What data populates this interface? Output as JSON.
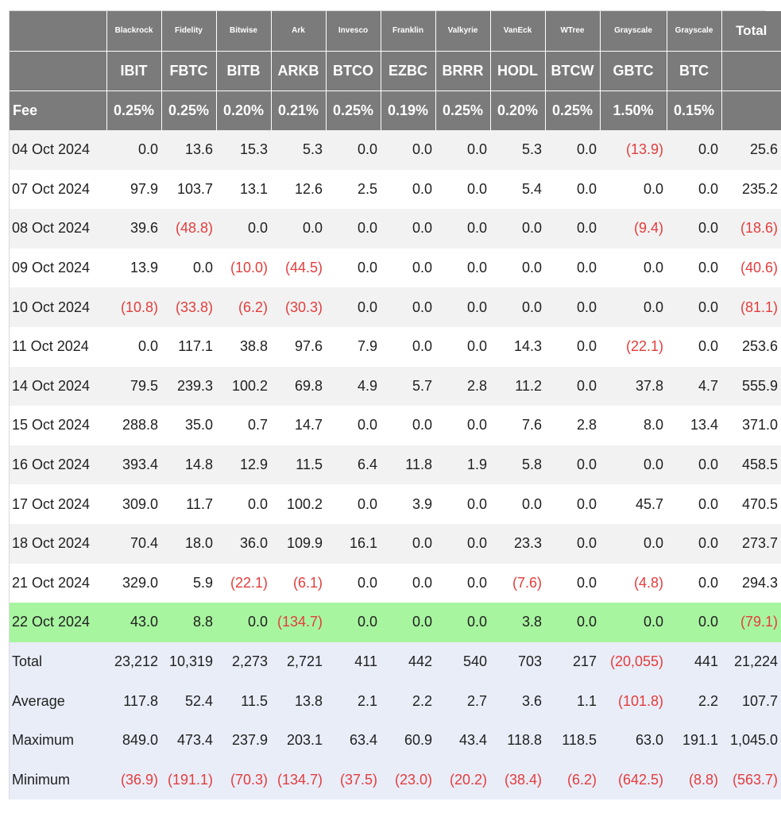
{
  "colors": {
    "header_bg": "#7b7b7b",
    "negative": "#e23d3d",
    "latest_row": "#a8f5a0",
    "summary_bg": "#e9edf8"
  },
  "header": {
    "issuers": [
      "Blackrock",
      "Fidelity",
      "Bitwise",
      "Ark",
      "Invesco",
      "Franklin",
      "Valkyrie",
      "VanEck",
      "WTree",
      "Grayscale",
      "Grayscale"
    ],
    "total_label": "Total",
    "tickers": [
      "IBIT",
      "FBTC",
      "BITB",
      "ARKB",
      "BTCO",
      "EZBC",
      "BRRR",
      "HODL",
      "BTCW",
      "GBTC",
      "BTC"
    ],
    "fee_label": "Fee",
    "fees": [
      "0.25%",
      "0.25%",
      "0.20%",
      "0.21%",
      "0.25%",
      "0.19%",
      "0.25%",
      "0.20%",
      "0.25%",
      "1.50%",
      "0.15%"
    ]
  },
  "rows": [
    {
      "date": "04 Oct 2024",
      "values": [
        "0.0",
        "13.6",
        "15.3",
        "5.3",
        "0.0",
        "0.0",
        "0.0",
        "5.3",
        "0.0",
        "(13.9)",
        "0.0",
        "25.6"
      ]
    },
    {
      "date": "07 Oct 2024",
      "values": [
        "97.9",
        "103.7",
        "13.1",
        "12.6",
        "2.5",
        "0.0",
        "0.0",
        "5.4",
        "0.0",
        "0.0",
        "0.0",
        "235.2"
      ]
    },
    {
      "date": "08 Oct 2024",
      "values": [
        "39.6",
        "(48.8)",
        "0.0",
        "0.0",
        "0.0",
        "0.0",
        "0.0",
        "0.0",
        "0.0",
        "(9.4)",
        "0.0",
        "(18.6)"
      ]
    },
    {
      "date": "09 Oct 2024",
      "values": [
        "13.9",
        "0.0",
        "(10.0)",
        "(44.5)",
        "0.0",
        "0.0",
        "0.0",
        "0.0",
        "0.0",
        "0.0",
        "0.0",
        "(40.6)"
      ]
    },
    {
      "date": "10 Oct 2024",
      "values": [
        "(10.8)",
        "(33.8)",
        "(6.2)",
        "(30.3)",
        "0.0",
        "0.0",
        "0.0",
        "0.0",
        "0.0",
        "0.0",
        "0.0",
        "(81.1)"
      ]
    },
    {
      "date": "11 Oct 2024",
      "values": [
        "0.0",
        "117.1",
        "38.8",
        "97.6",
        "7.9",
        "0.0",
        "0.0",
        "14.3",
        "0.0",
        "(22.1)",
        "0.0",
        "253.6"
      ]
    },
    {
      "date": "14 Oct 2024",
      "values": [
        "79.5",
        "239.3",
        "100.2",
        "69.8",
        "4.9",
        "5.7",
        "2.8",
        "11.2",
        "0.0",
        "37.8",
        "4.7",
        "555.9"
      ]
    },
    {
      "date": "15 Oct 2024",
      "values": [
        "288.8",
        "35.0",
        "0.7",
        "14.7",
        "0.0",
        "0.0",
        "0.0",
        "7.6",
        "2.8",
        "8.0",
        "13.4",
        "371.0"
      ]
    },
    {
      "date": "16 Oct 2024",
      "values": [
        "393.4",
        "14.8",
        "12.9",
        "11.5",
        "6.4",
        "11.8",
        "1.9",
        "5.8",
        "0.0",
        "0.0",
        "0.0",
        "458.5"
      ]
    },
    {
      "date": "17 Oct 2024",
      "values": [
        "309.0",
        "11.7",
        "0.0",
        "100.2",
        "0.0",
        "3.9",
        "0.0",
        "0.0",
        "0.0",
        "45.7",
        "0.0",
        "470.5"
      ]
    },
    {
      "date": "18 Oct 2024",
      "values": [
        "70.4",
        "18.0",
        "36.0",
        "109.9",
        "16.1",
        "0.0",
        "0.0",
        "23.3",
        "0.0",
        "0.0",
        "0.0",
        "273.7"
      ]
    },
    {
      "date": "21 Oct 2024",
      "values": [
        "329.0",
        "5.9",
        "(22.1)",
        "(6.1)",
        "0.0",
        "0.0",
        "0.0",
        "(7.6)",
        "0.0",
        "(4.8)",
        "0.0",
        "294.3"
      ]
    },
    {
      "date": "22 Oct 2024",
      "values": [
        "43.0",
        "8.8",
        "0.0",
        "(134.7)",
        "0.0",
        "0.0",
        "0.0",
        "3.8",
        "0.0",
        "0.0",
        "0.0",
        "(79.1)"
      ]
    }
  ],
  "summary": [
    {
      "label": "Total",
      "values": [
        "23,212",
        "10,319",
        "2,273",
        "2,721",
        "411",
        "442",
        "540",
        "703",
        "217",
        "(20,055)",
        "441",
        "21,224"
      ]
    },
    {
      "label": "Average",
      "values": [
        "117.8",
        "52.4",
        "11.5",
        "13.8",
        "2.1",
        "2.2",
        "2.7",
        "3.6",
        "1.1",
        "(101.8)",
        "2.2",
        "107.7"
      ]
    },
    {
      "label": "Maximum",
      "values": [
        "849.0",
        "473.4",
        "237.9",
        "203.1",
        "63.4",
        "60.9",
        "43.4",
        "118.8",
        "118.5",
        "63.0",
        "191.1",
        "1,045.0"
      ]
    },
    {
      "label": "Minimum",
      "values": [
        "(36.9)",
        "(191.1)",
        "(70.3)",
        "(134.7)",
        "(37.5)",
        "(23.0)",
        "(20.2)",
        "(38.4)",
        "(6.2)",
        "(642.5)",
        "(8.8)",
        "(563.7)"
      ]
    }
  ]
}
